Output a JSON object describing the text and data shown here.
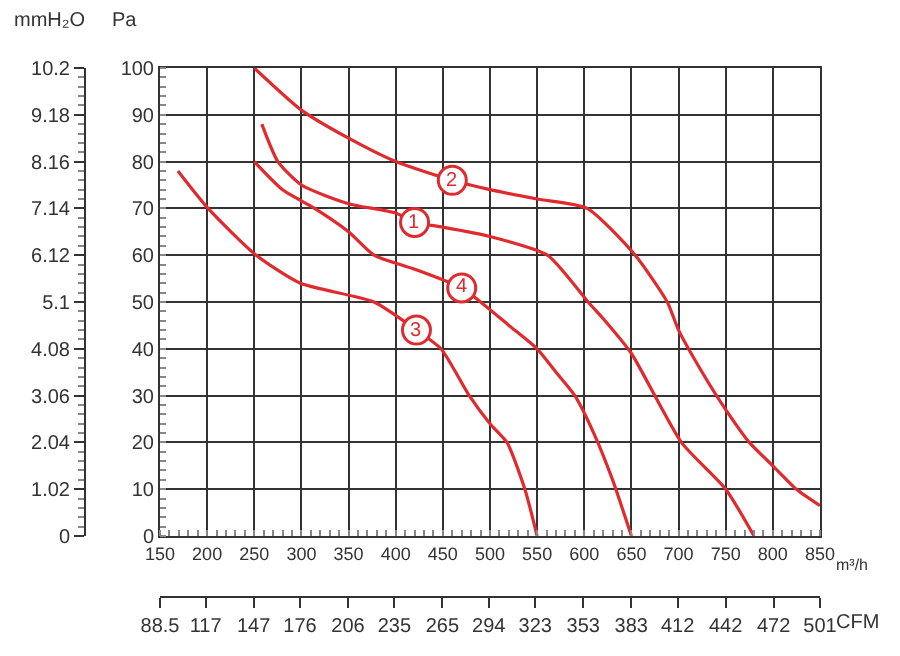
{
  "chart_data": {
    "type": "line",
    "ylabel": "Pa",
    "y2label": "mmH₂O",
    "xlabel": "m³/h",
    "x2label": "CFM",
    "xlim": [
      150,
      850
    ],
    "xticks": [
      150,
      200,
      250,
      300,
      350,
      400,
      450,
      500,
      550,
      600,
      650,
      700,
      750,
      800,
      850
    ],
    "ylim": [
      0,
      100
    ],
    "yticks": [
      0,
      10,
      20,
      30,
      40,
      50,
      60,
      70,
      80,
      90,
      100
    ],
    "y2lim": [
      0,
      10.2
    ],
    "y2ticks": [
      0,
      1.02,
      2.04,
      3.06,
      4.08,
      5.1,
      6.12,
      7.14,
      8.16,
      9.18,
      10.2
    ],
    "x2lim": [
      88.5,
      501
    ],
    "x2ticks": [
      88.5,
      117,
      147,
      176,
      206,
      235,
      265,
      294,
      323,
      353,
      383,
      412,
      442,
      472,
      501
    ],
    "grid": true,
    "marker": "none",
    "line_style": "solid",
    "series": [
      {
        "color": "#e02a2e",
        "x": [
          258,
          275,
          300,
          350,
          400,
          420,
          450,
          500,
          561,
          604,
          622,
          650,
          703,
          750,
          780
        ],
        "values": [
          88,
          80,
          75,
          71,
          69,
          67,
          66,
          64,
          60,
          50,
          46,
          39,
          20,
          10,
          0
        ]
      },
      {
        "color": "#e02a2e",
        "x": [
          250,
          300,
          350,
          400,
          460,
          500,
          550,
          603,
          654,
          688,
          700,
          725,
          750,
          775,
          800,
          825,
          850
        ],
        "values": [
          100,
          91,
          85,
          80,
          76,
          74,
          72,
          70,
          60,
          50,
          44,
          35,
          27,
          20,
          15,
          10,
          6.5
        ]
      },
      {
        "color": "#e02a2e",
        "x": [
          169,
          201,
          252,
          299,
          377,
          422,
          448,
          478,
          500,
          518,
          537,
          550
        ],
        "values": [
          78,
          70,
          60,
          54,
          50,
          44,
          40,
          30,
          24,
          20,
          10,
          0
        ]
      },
      {
        "color": "#e02a2e",
        "x": [
          250,
          280,
          314,
          350,
          377,
          420,
          470,
          490,
          520,
          550,
          570,
          590,
          610,
          630,
          650
        ],
        "values": [
          80,
          74,
          70,
          65,
          60,
          57,
          53,
          50,
          45,
          40,
          35,
          30,
          22,
          12,
          0
        ]
      }
    ],
    "annotations": [
      {
        "text": "1",
        "x": 420,
        "y": 67
      },
      {
        "text": "2",
        "x": 460,
        "y": 76
      },
      {
        "text": "3",
        "x": 422,
        "y": 44
      },
      {
        "text": "4",
        "x": 470,
        "y": 53
      }
    ]
  }
}
